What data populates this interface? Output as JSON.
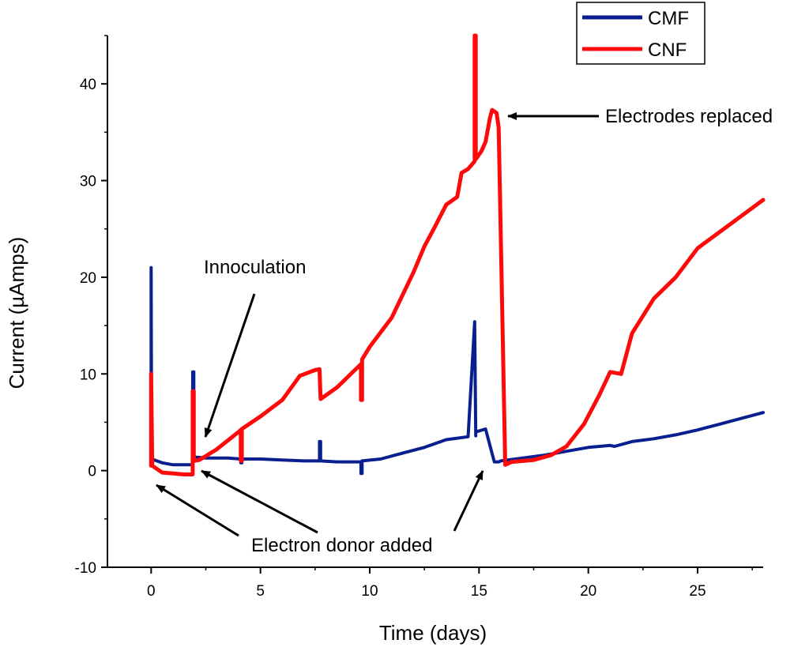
{
  "chart_data": {
    "type": "line",
    "title": "",
    "xlabel": "Time (days)",
    "ylabel": "Current (µAmps)",
    "xlim": [
      -2,
      28
    ],
    "ylim": [
      -10,
      45
    ],
    "xticks": [
      0,
      5,
      10,
      15,
      20,
      25
    ],
    "yticks": [
      -10,
      0,
      10,
      20,
      30,
      40
    ],
    "legend": {
      "position": "top-right"
    },
    "colors": {
      "CMF": "#0a1f8f",
      "CNF": "#ff0a0a",
      "axis": "#000000"
    },
    "series": [
      {
        "name": "CMF",
        "x": [
          0,
          0,
          0.02,
          0.5,
          1.0,
          1.9,
          1.9,
          1.95,
          1.95,
          2.5,
          3.5,
          4.1,
          4.1,
          4.15,
          4.15,
          5,
          6,
          7,
          7.7,
          7.7,
          7.75,
          7.75,
          8.5,
          9.6,
          9.6,
          9.65,
          9.65,
          10.5,
          11.5,
          12.5,
          13.5,
          14.5,
          14.8,
          14.8,
          14.85,
          14.85,
          15.3,
          15.7,
          15.9,
          16,
          17,
          18,
          19,
          20,
          21,
          21.2,
          22,
          23,
          24,
          25,
          26,
          27,
          28
        ],
        "y": [
          1.2,
          21,
          1.2,
          0.8,
          0.6,
          0.6,
          10.2,
          10.2,
          1.4,
          1.3,
          1.3,
          1.2,
          0.8,
          0.8,
          1.2,
          1.2,
          1.1,
          1.0,
          1.0,
          3.0,
          3.0,
          1.0,
          0.9,
          0.9,
          -0.3,
          -0.3,
          1.0,
          1.2,
          1.8,
          2.4,
          3.2,
          3.5,
          15.4,
          15.4,
          3.6,
          4.0,
          4.3,
          0.9,
          0.9,
          1.0,
          1.3,
          1.6,
          2.0,
          2.4,
          2.6,
          2.5,
          3.0,
          3.3,
          3.7,
          4.2,
          4.8,
          5.4,
          6.0
        ]
      },
      {
        "name": "CNF",
        "x": [
          0,
          0,
          0.05,
          0.5,
          1.0,
          1.5,
          1.9,
          1.9,
          1.95,
          1.95,
          2.2,
          2.5,
          3.0,
          3.5,
          4.0,
          4.1,
          4.1,
          4.15,
          4.15,
          5.0,
          6.0,
          6.8,
          7.5,
          7.7,
          7.75,
          8.5,
          9.5,
          9.6,
          9.6,
          9.65,
          9.65,
          10.0,
          11.0,
          12.0,
          12.5,
          13.0,
          13.5,
          14.0,
          14.2,
          14.5,
          14.8,
          14.8,
          14.85,
          14.85,
          15.1,
          15.3,
          15.5,
          15.6,
          15.8,
          15.9,
          16.2,
          16.5,
          17.5,
          18.3,
          19.0,
          19.8,
          20.5,
          21.0,
          21.5,
          22.0,
          23.0,
          24.0,
          25.0,
          26.5,
          28.0
        ],
        "y": [
          0.5,
          10,
          0.5,
          -0.2,
          -0.3,
          -0.4,
          -0.4,
          8.2,
          8.2,
          1.0,
          1.1,
          1.5,
          2.2,
          3.1,
          4.0,
          4.2,
          1.0,
          1.0,
          4.3,
          5.6,
          7.3,
          9.8,
          10.4,
          10.5,
          7.4,
          8.6,
          10.8,
          11.0,
          7.3,
          7.3,
          11.5,
          12.8,
          15.8,
          20.5,
          23.2,
          25.3,
          27.5,
          28.3,
          30.8,
          31.2,
          32.0,
          45,
          45,
          32.2,
          33.0,
          34.0,
          36.5,
          37.3,
          37.0,
          35.5,
          0.6,
          0.9,
          1.1,
          1.6,
          2.5,
          4.8,
          7.8,
          10.2,
          10.0,
          14.2,
          17.8,
          20.0,
          23.0,
          25.5,
          28.0
        ]
      }
    ],
    "annotations": [
      {
        "text": "Innoculation",
        "anchor_x": 2.5,
        "anchor_y": 3.5
      },
      {
        "text": "Electrodes replaced",
        "anchor_x": 16.0,
        "anchor_y": 37.0
      },
      {
        "text": "Electron donor added",
        "arrows_to": [
          [
            0.2,
            -1.2
          ],
          [
            2.3,
            0.3
          ],
          [
            15.3,
            0.3
          ]
        ]
      }
    ]
  }
}
